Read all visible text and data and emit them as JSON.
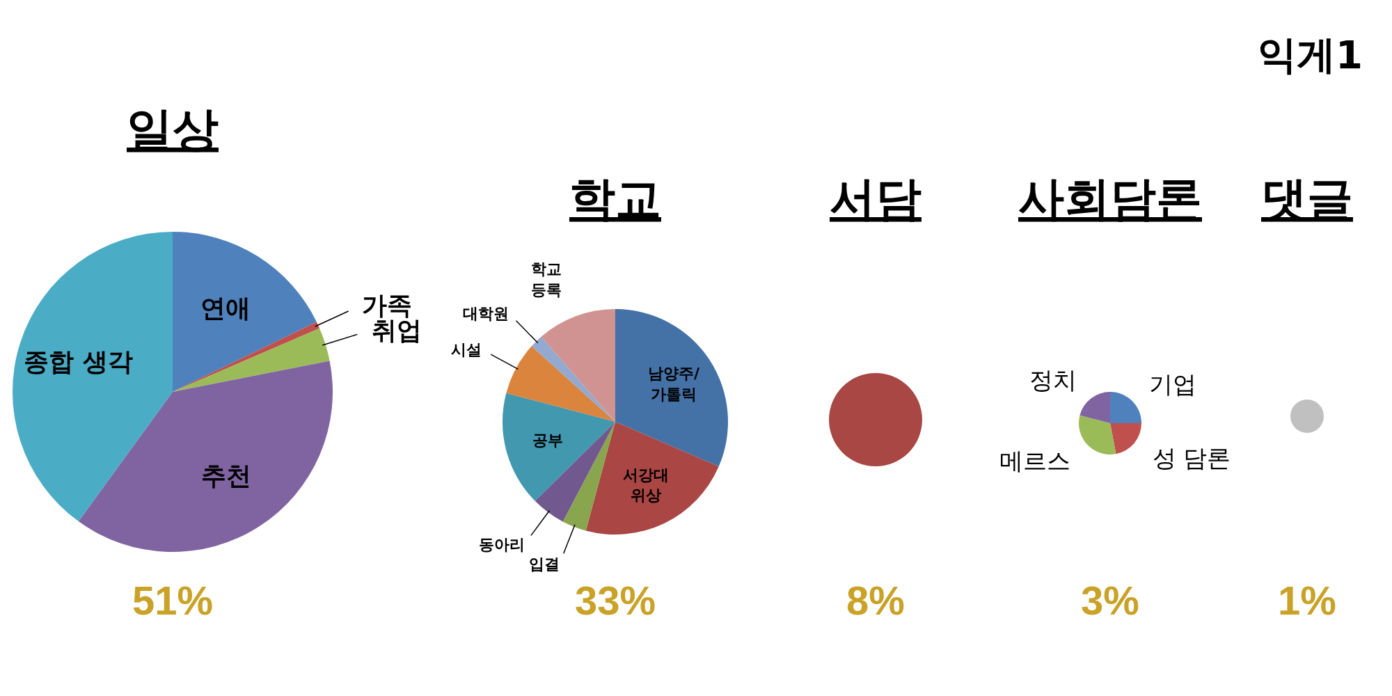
{
  "chart_data": [
    {
      "type": "pie",
      "title": "일상",
      "categories": [
        "연애",
        "가족",
        "취업",
        "추천",
        "종합 생각"
      ],
      "values": [
        17.8,
        0.7,
        3.4,
        38.1,
        40
      ],
      "colors": [
        "#4f81bd",
        "#c0504d",
        "#9bbb59",
        "#8064a2",
        "#4bacc6"
      ],
      "annotations": [
        "51%",
        "익게1"
      ]
    },
    {
      "type": "pie",
      "title": "학교",
      "categories": [
        "남양주/\n가톨릭",
        "서강대\n위상",
        "입결",
        "동아리",
        "공부",
        "시설",
        "대학원",
        "학교\n등록"
      ],
      "values": [
        31.5,
        22.7,
        3.5,
        4.9,
        16.5,
        7.6,
        1.9,
        11.4
      ],
      "colors": [
        "#4471a6",
        "#aa4643",
        "#89a54e",
        "#71588f",
        "#4198af",
        "#db843d",
        "#93a9cf",
        "#d19392"
      ],
      "annotations": [
        "33%"
      ]
    },
    {
      "type": "pie",
      "title": "서담",
      "categories": [
        null
      ],
      "values": [
        100
      ],
      "colors": [
        "#a84744"
      ],
      "annotations": [
        "8%"
      ]
    },
    {
      "type": "pie",
      "title": "사회담론",
      "categories": [
        "기업",
        "성 담론",
        "메르스",
        "정치"
      ],
      "values": [
        25,
        22,
        32,
        21
      ],
      "colors": [
        "#4f81bd",
        "#c0504d",
        "#9bbb59",
        "#8064a2"
      ],
      "annotations": [
        "3%"
      ]
    },
    {
      "type": "pie",
      "title": "댓글",
      "categories": [
        null
      ],
      "values": [
        100
      ],
      "colors": [
        "#c0c0c0"
      ],
      "annotations": [
        "1%"
      ]
    }
  ]
}
